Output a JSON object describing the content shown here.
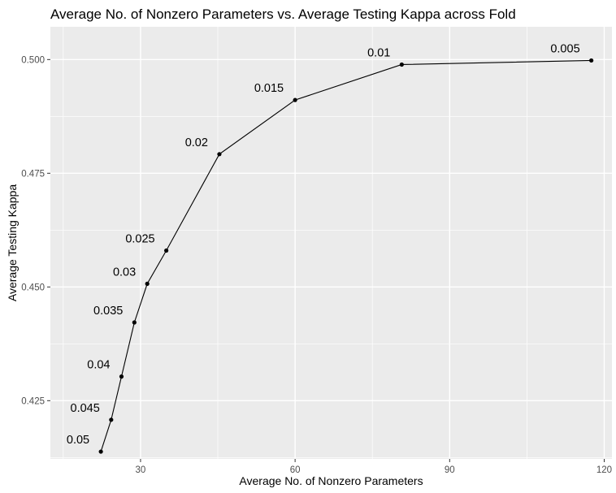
{
  "chart_data": {
    "type": "line",
    "title": "Average No. of Nonzero Parameters vs. Average Testing Kappa across Fold",
    "xlabel": "Average No. of Nonzero Parameters",
    "ylabel": "Average Testing Kappa",
    "xlim": [
      12.5,
      121.5
    ],
    "ylim": [
      0.4122,
      0.5072
    ],
    "x_ticks": [
      30,
      60,
      90,
      120
    ],
    "x_tick_labels": [
      "30",
      "60",
      "90",
      "120"
    ],
    "y_ticks": [
      0.425,
      0.45,
      0.475,
      0.5
    ],
    "y_tick_labels": [
      "0.425",
      "0.450",
      "0.475",
      "0.500"
    ],
    "grid": true,
    "background": "#ebebeb",
    "grid_major_color": "#ffffff",
    "line_color": "#000000",
    "point_color": "#000000",
    "points": [
      {
        "label": "0.05",
        "x": 22.3,
        "y": 0.4138
      },
      {
        "label": "0.045",
        "x": 24.3,
        "y": 0.4208
      },
      {
        "label": "0.04",
        "x": 26.3,
        "y": 0.4303
      },
      {
        "label": "0.035",
        "x": 28.8,
        "y": 0.4422
      },
      {
        "label": "0.03",
        "x": 31.3,
        "y": 0.4507
      },
      {
        "label": "0.025",
        "x": 35.0,
        "y": 0.458
      },
      {
        "label": "0.02",
        "x": 45.3,
        "y": 0.4792
      },
      {
        "label": "0.015",
        "x": 60.0,
        "y": 0.4911
      },
      {
        "label": "0.01",
        "x": 80.7,
        "y": 0.4989
      },
      {
        "label": "0.005",
        "x": 117.5,
        "y": 0.4998
      }
    ]
  }
}
